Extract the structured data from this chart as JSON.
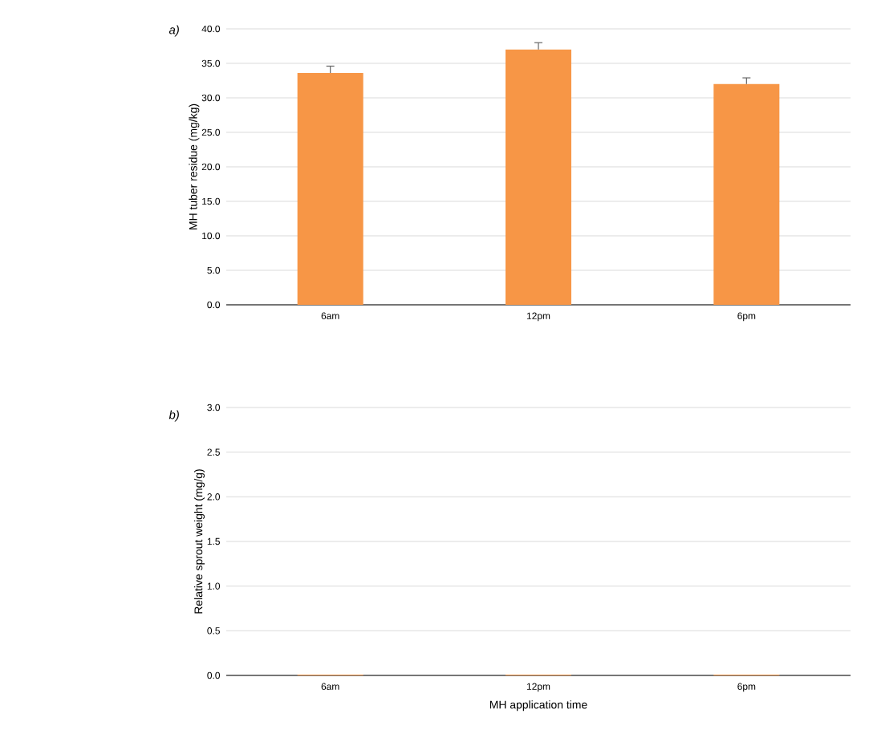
{
  "chart_data": [
    {
      "type": "bar",
      "title": "a)",
      "ylabel": "MH tuber residue (mg/kg)",
      "categories": [
        "6am",
        "12pm",
        "6pm"
      ],
      "values": [
        33.6,
        37.0,
        32.0
      ],
      "errors": [
        1.0,
        1.0,
        0.9
      ],
      "color": "#f79646",
      "ylim": [
        0,
        40
      ],
      "yticks": [
        {
          "value": 0,
          "label": "0.0"
        },
        {
          "value": 5,
          "label": "5.0"
        },
        {
          "value": 10,
          "label": "10.0"
        },
        {
          "value": 15,
          "label": "15.0"
        },
        {
          "value": 20,
          "label": "20.0"
        },
        {
          "value": 25,
          "label": "25.0"
        },
        {
          "value": 30,
          "label": "30.0"
        },
        {
          "value": 35,
          "label": "35.0"
        },
        {
          "value": 40,
          "label": "40.0"
        }
      ],
      "grid": "y"
    },
    {
      "type": "bar",
      "title": "b)",
      "xlabel": "MH application time",
      "ylabel": "Relative sprout weight (mg/g)",
      "categories": [
        "6am",
        "12pm",
        "6pm"
      ],
      "values": [
        0.01,
        0.01,
        0.01
      ],
      "color": "#f79646",
      "ylim": [
        0,
        3
      ],
      "yticks": [
        {
          "value": 0,
          "label": "0.0"
        },
        {
          "value": 0.5,
          "label": "0.5"
        },
        {
          "value": 1,
          "label": "1.0"
        },
        {
          "value": 1.5,
          "label": "1.5"
        },
        {
          "value": 2,
          "label": "2.0"
        },
        {
          "value": 2.5,
          "label": "2.5"
        },
        {
          "value": 3,
          "label": "3.0"
        }
      ],
      "grid": "y"
    }
  ]
}
